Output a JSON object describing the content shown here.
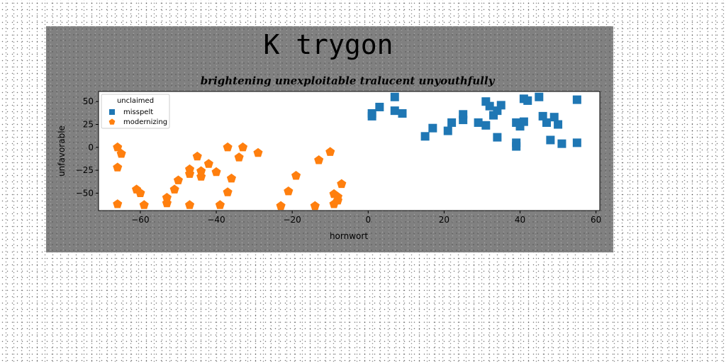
{
  "chart_data": {
    "type": "scatter",
    "title": "K trygon",
    "subtitle": "brightening unexploitable tralucent unyouthfully",
    "xlabel": "hornwort",
    "ylabel": "unfavorable",
    "xlim": [
      -71,
      61
    ],
    "ylim": [
      -69,
      61
    ],
    "xticks": [
      -60,
      -40,
      -20,
      0,
      20,
      40,
      60
    ],
    "yticks": [
      -50,
      -25,
      0,
      25,
      50
    ],
    "grid": false,
    "legend": {
      "title": "unclaimed",
      "placement": "top-left"
    },
    "series": [
      {
        "name": "misspelt",
        "marker": "square",
        "color": "#1f77b4",
        "points": [
          [
            1,
            34
          ],
          [
            1,
            37
          ],
          [
            3,
            44
          ],
          [
            7,
            55
          ],
          [
            7,
            40
          ],
          [
            9,
            37
          ],
          [
            15,
            12
          ],
          [
            17,
            21
          ],
          [
            21,
            18
          ],
          [
            22,
            27
          ],
          [
            25,
            30
          ],
          [
            25,
            36
          ],
          [
            29,
            27
          ],
          [
            31,
            24
          ],
          [
            31,
            50
          ],
          [
            32,
            45
          ],
          [
            33,
            35
          ],
          [
            34,
            40
          ],
          [
            34,
            11
          ],
          [
            35,
            46
          ],
          [
            39,
            27
          ],
          [
            39,
            5
          ],
          [
            39,
            1
          ],
          [
            40,
            23
          ],
          [
            41,
            28
          ],
          [
            41,
            53
          ],
          [
            42,
            51
          ],
          [
            45,
            55
          ],
          [
            46,
            34
          ],
          [
            47,
            27
          ],
          [
            48,
            8
          ],
          [
            49,
            33
          ],
          [
            50,
            25
          ],
          [
            51,
            4
          ],
          [
            55,
            52
          ],
          [
            55,
            5
          ]
        ]
      },
      {
        "name": "modernizing",
        "marker": "pentagon",
        "color": "#ff7f0e",
        "points": [
          [
            -66,
            0
          ],
          [
            -65,
            -7
          ],
          [
            -66,
            -22
          ],
          [
            -66,
            -62
          ],
          [
            -61,
            -46
          ],
          [
            -60,
            -50
          ],
          [
            -59,
            -63
          ],
          [
            -53,
            -55
          ],
          [
            -53,
            -61
          ],
          [
            -51,
            -46
          ],
          [
            -50,
            -36
          ],
          [
            -47,
            -24
          ],
          [
            -47,
            -29
          ],
          [
            -47,
            -63
          ],
          [
            -45,
            -10
          ],
          [
            -44,
            -26
          ],
          [
            -44,
            -32
          ],
          [
            -42,
            -18
          ],
          [
            -40,
            -27
          ],
          [
            -39,
            -63
          ],
          [
            -37,
            -49
          ],
          [
            -37,
            0
          ],
          [
            -36,
            -34
          ],
          [
            -34,
            -11
          ],
          [
            -33,
            0
          ],
          [
            -29,
            -6
          ],
          [
            -23,
            -64
          ],
          [
            -21,
            -48
          ],
          [
            -19,
            -31
          ],
          [
            -14,
            -64
          ],
          [
            -13,
            -14
          ],
          [
            -10,
            -5
          ],
          [
            -9,
            -51
          ],
          [
            -9,
            -62
          ],
          [
            -8,
            -58
          ],
          [
            -8,
            -54
          ],
          [
            -7,
            -40
          ]
        ]
      }
    ]
  }
}
